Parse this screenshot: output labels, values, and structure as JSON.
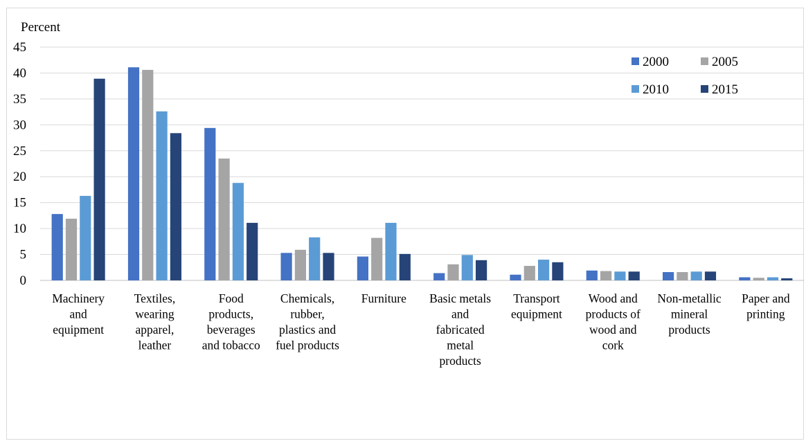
{
  "chart_data": {
    "type": "bar",
    "title": "",
    "ylabel": "Percent",
    "xlabel": "",
    "ylim": [
      0,
      45
    ],
    "yticks": [
      0,
      5,
      10,
      15,
      20,
      25,
      30,
      35,
      40,
      45
    ],
    "grid": true,
    "legend_position": "top-right",
    "categories": [
      [
        "Machinery",
        "and",
        "equipment"
      ],
      [
        "Textiles,",
        "wearing",
        "apparel,",
        "leather"
      ],
      [
        "Food",
        "products,",
        "beverages",
        "and tobacco"
      ],
      [
        "Chemicals,",
        "rubber,",
        "plastics and",
        "fuel products"
      ],
      [
        "Furniture"
      ],
      [
        "Basic metals",
        "and",
        "fabricated",
        "metal",
        "products"
      ],
      [
        "Transport",
        "equipment"
      ],
      [
        "Wood and",
        "products of",
        "wood and",
        "cork"
      ],
      [
        "Non-metallic",
        "mineral",
        "products"
      ],
      [
        "Paper and",
        "printing"
      ]
    ],
    "series": [
      {
        "name": "2000",
        "color": "#4472c4",
        "values": [
          12.8,
          41.1,
          29.4,
          5.3,
          4.6,
          1.4,
          1.1,
          1.9,
          1.6,
          0.6
        ]
      },
      {
        "name": "2005",
        "color": "#a5a5a5",
        "values": [
          11.9,
          40.6,
          23.5,
          5.9,
          8.2,
          3.1,
          2.8,
          1.8,
          1.6,
          0.5
        ]
      },
      {
        "name": "2010",
        "color": "#5b9bd5",
        "values": [
          16.3,
          32.6,
          18.8,
          8.3,
          11.1,
          4.9,
          4.0,
          1.7,
          1.7,
          0.6
        ]
      },
      {
        "name": "2015",
        "color": "#264478",
        "values": [
          38.9,
          28.4,
          11.1,
          5.3,
          5.1,
          3.9,
          3.5,
          1.7,
          1.7,
          0.4
        ]
      }
    ]
  }
}
